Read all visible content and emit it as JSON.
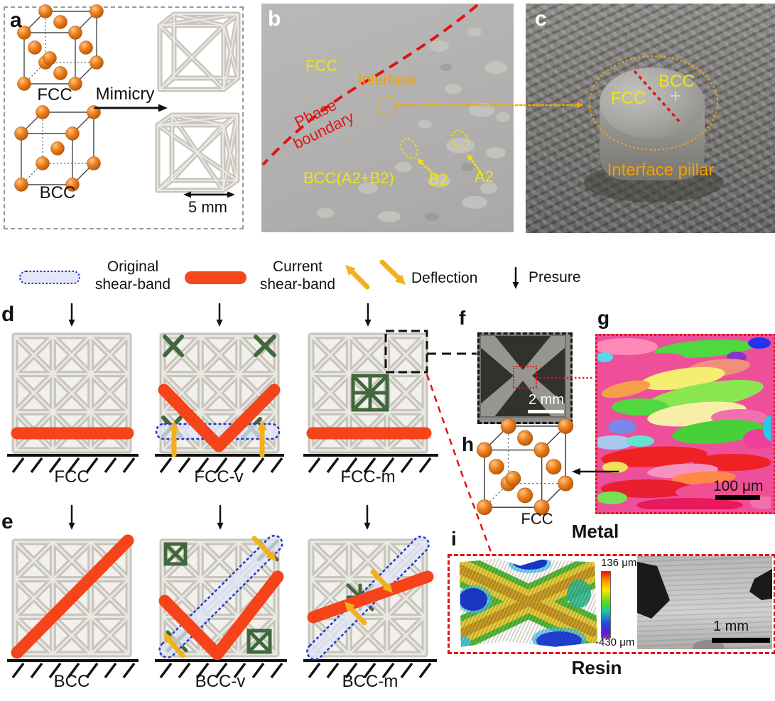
{
  "figure": {
    "panel_a": {
      "letter": "a",
      "fcc": "FCC",
      "bcc": "BCC",
      "arrow_label": "Mimicry",
      "scalebar": "5 mm"
    },
    "panel_b": {
      "letter": "b",
      "region_top": "FCC",
      "interface": "Interface",
      "phase_l1": "Phase",
      "phase_l2": "boundary",
      "region_bottom": "BCC(A2+B2)",
      "b2": "B2",
      "a2": "A2"
    },
    "panel_c": {
      "letter": "c",
      "fcc": "FCC",
      "bcc": "BCC",
      "pillar": "Interface pillar"
    },
    "legend": {
      "original_l1": "Original",
      "original_l2": "shear-band",
      "current_l1": "Current",
      "current_l2": "shear-band",
      "deflection": "Deflection",
      "pressure": "Presure"
    },
    "panel_d": {
      "letter": "d",
      "labels": [
        "FCC",
        "FCC-v",
        "FCC-m"
      ]
    },
    "panel_e": {
      "letter": "e",
      "labels": [
        "BCC",
        "BCC-v",
        "BCC-m"
      ]
    },
    "panel_f": {
      "letter": "f",
      "scalebar": "2 mm"
    },
    "panel_g": {
      "letter": "g",
      "scalebar": "100 μm"
    },
    "panel_h": {
      "letter": "h",
      "crystal": "FCC",
      "material": "Metal"
    },
    "panel_i": {
      "letter": "i",
      "colorbar_max": "136 μm",
      "colorbar_min": "-430 μm",
      "scalebar": "1 mm",
      "material": "Resin"
    }
  },
  "colors": {
    "current_shear_band": "#f5431a",
    "original_band_stroke": "#2236cc",
    "original_band_fill": "#e2e6f8",
    "deflection_arrow": "#f2b11c",
    "modified_cell_green": "#41683c",
    "label_yellow": "#f0e412",
    "label_orange": "#f5a100",
    "label_red": "#e01414",
    "lattice_gray": "#c7c4bb",
    "sphere_orange": "#e8821f"
  }
}
